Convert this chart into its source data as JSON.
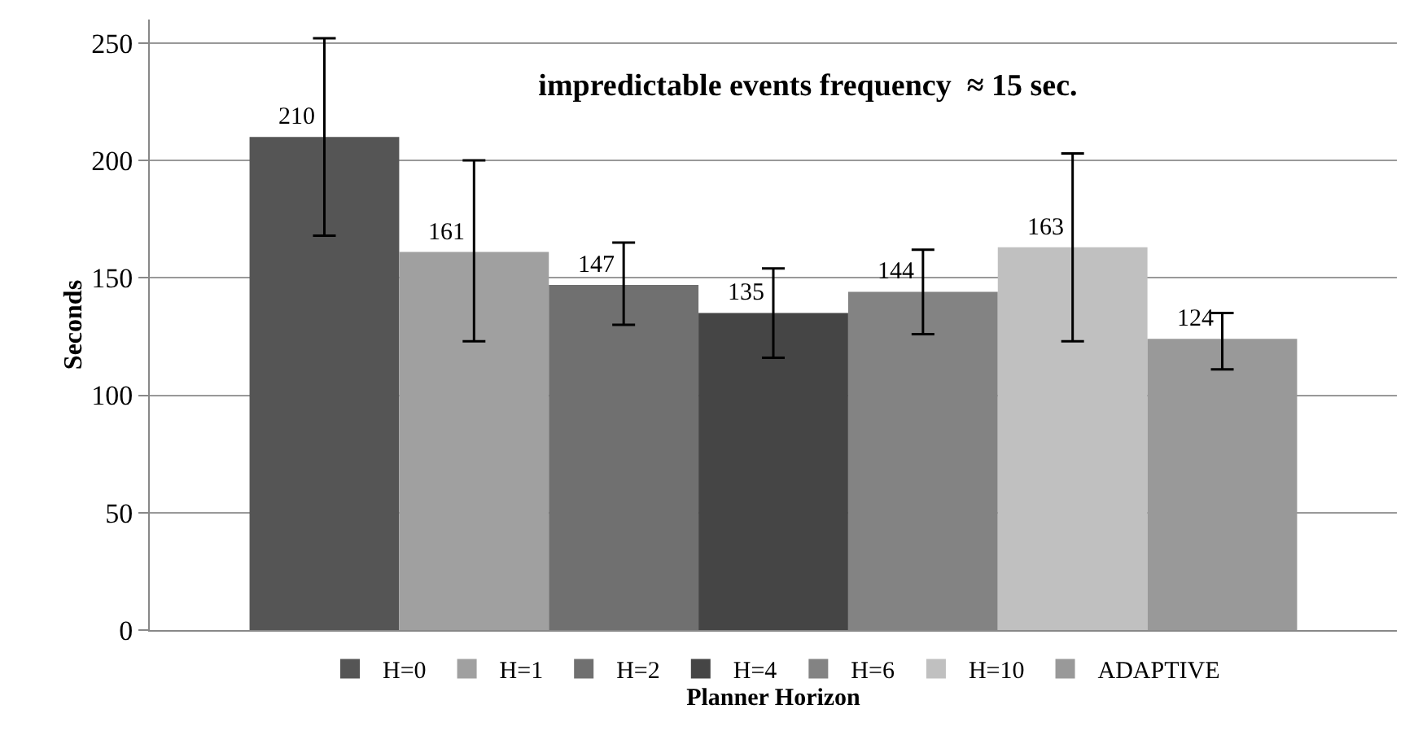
{
  "chart_data": {
    "type": "bar",
    "title": "impredictable events frequency  ≈ 15 sec.",
    "xlabel": "Planner Horizon",
    "ylabel": "Seconds",
    "categories": [
      null
    ],
    "series": [
      {
        "name": "H=0",
        "color": "#555555",
        "values": [
          210
        ],
        "errors": [
          [
            168,
            252
          ]
        ]
      },
      {
        "name": "H=1",
        "color": "#a0a0a0",
        "values": [
          161
        ],
        "errors": [
          [
            123,
            200
          ]
        ]
      },
      {
        "name": "H=2",
        "color": "#707070",
        "values": [
          147
        ],
        "errors": [
          [
            130,
            165
          ]
        ]
      },
      {
        "name": "H=4",
        "color": "#454545",
        "values": [
          135
        ],
        "errors": [
          [
            116,
            154
          ]
        ]
      },
      {
        "name": "H=6",
        "color": "#838383",
        "values": [
          144
        ],
        "errors": [
          [
            126,
            162
          ]
        ]
      },
      {
        "name": "H=10",
        "color": "#c0c0c0",
        "values": [
          163
        ],
        "errors": [
          [
            123,
            203
          ]
        ]
      },
      {
        "name": "ADAPTIVE",
        "color": "#999999",
        "values": [
          124
        ],
        "errors": [
          [
            111,
            135
          ]
        ]
      }
    ],
    "ylim": [
      0,
      260
    ],
    "yticks": [
      0,
      50,
      100,
      150,
      200,
      250
    ],
    "grid": "y",
    "legend": "bottom",
    "data_labels": true
  }
}
